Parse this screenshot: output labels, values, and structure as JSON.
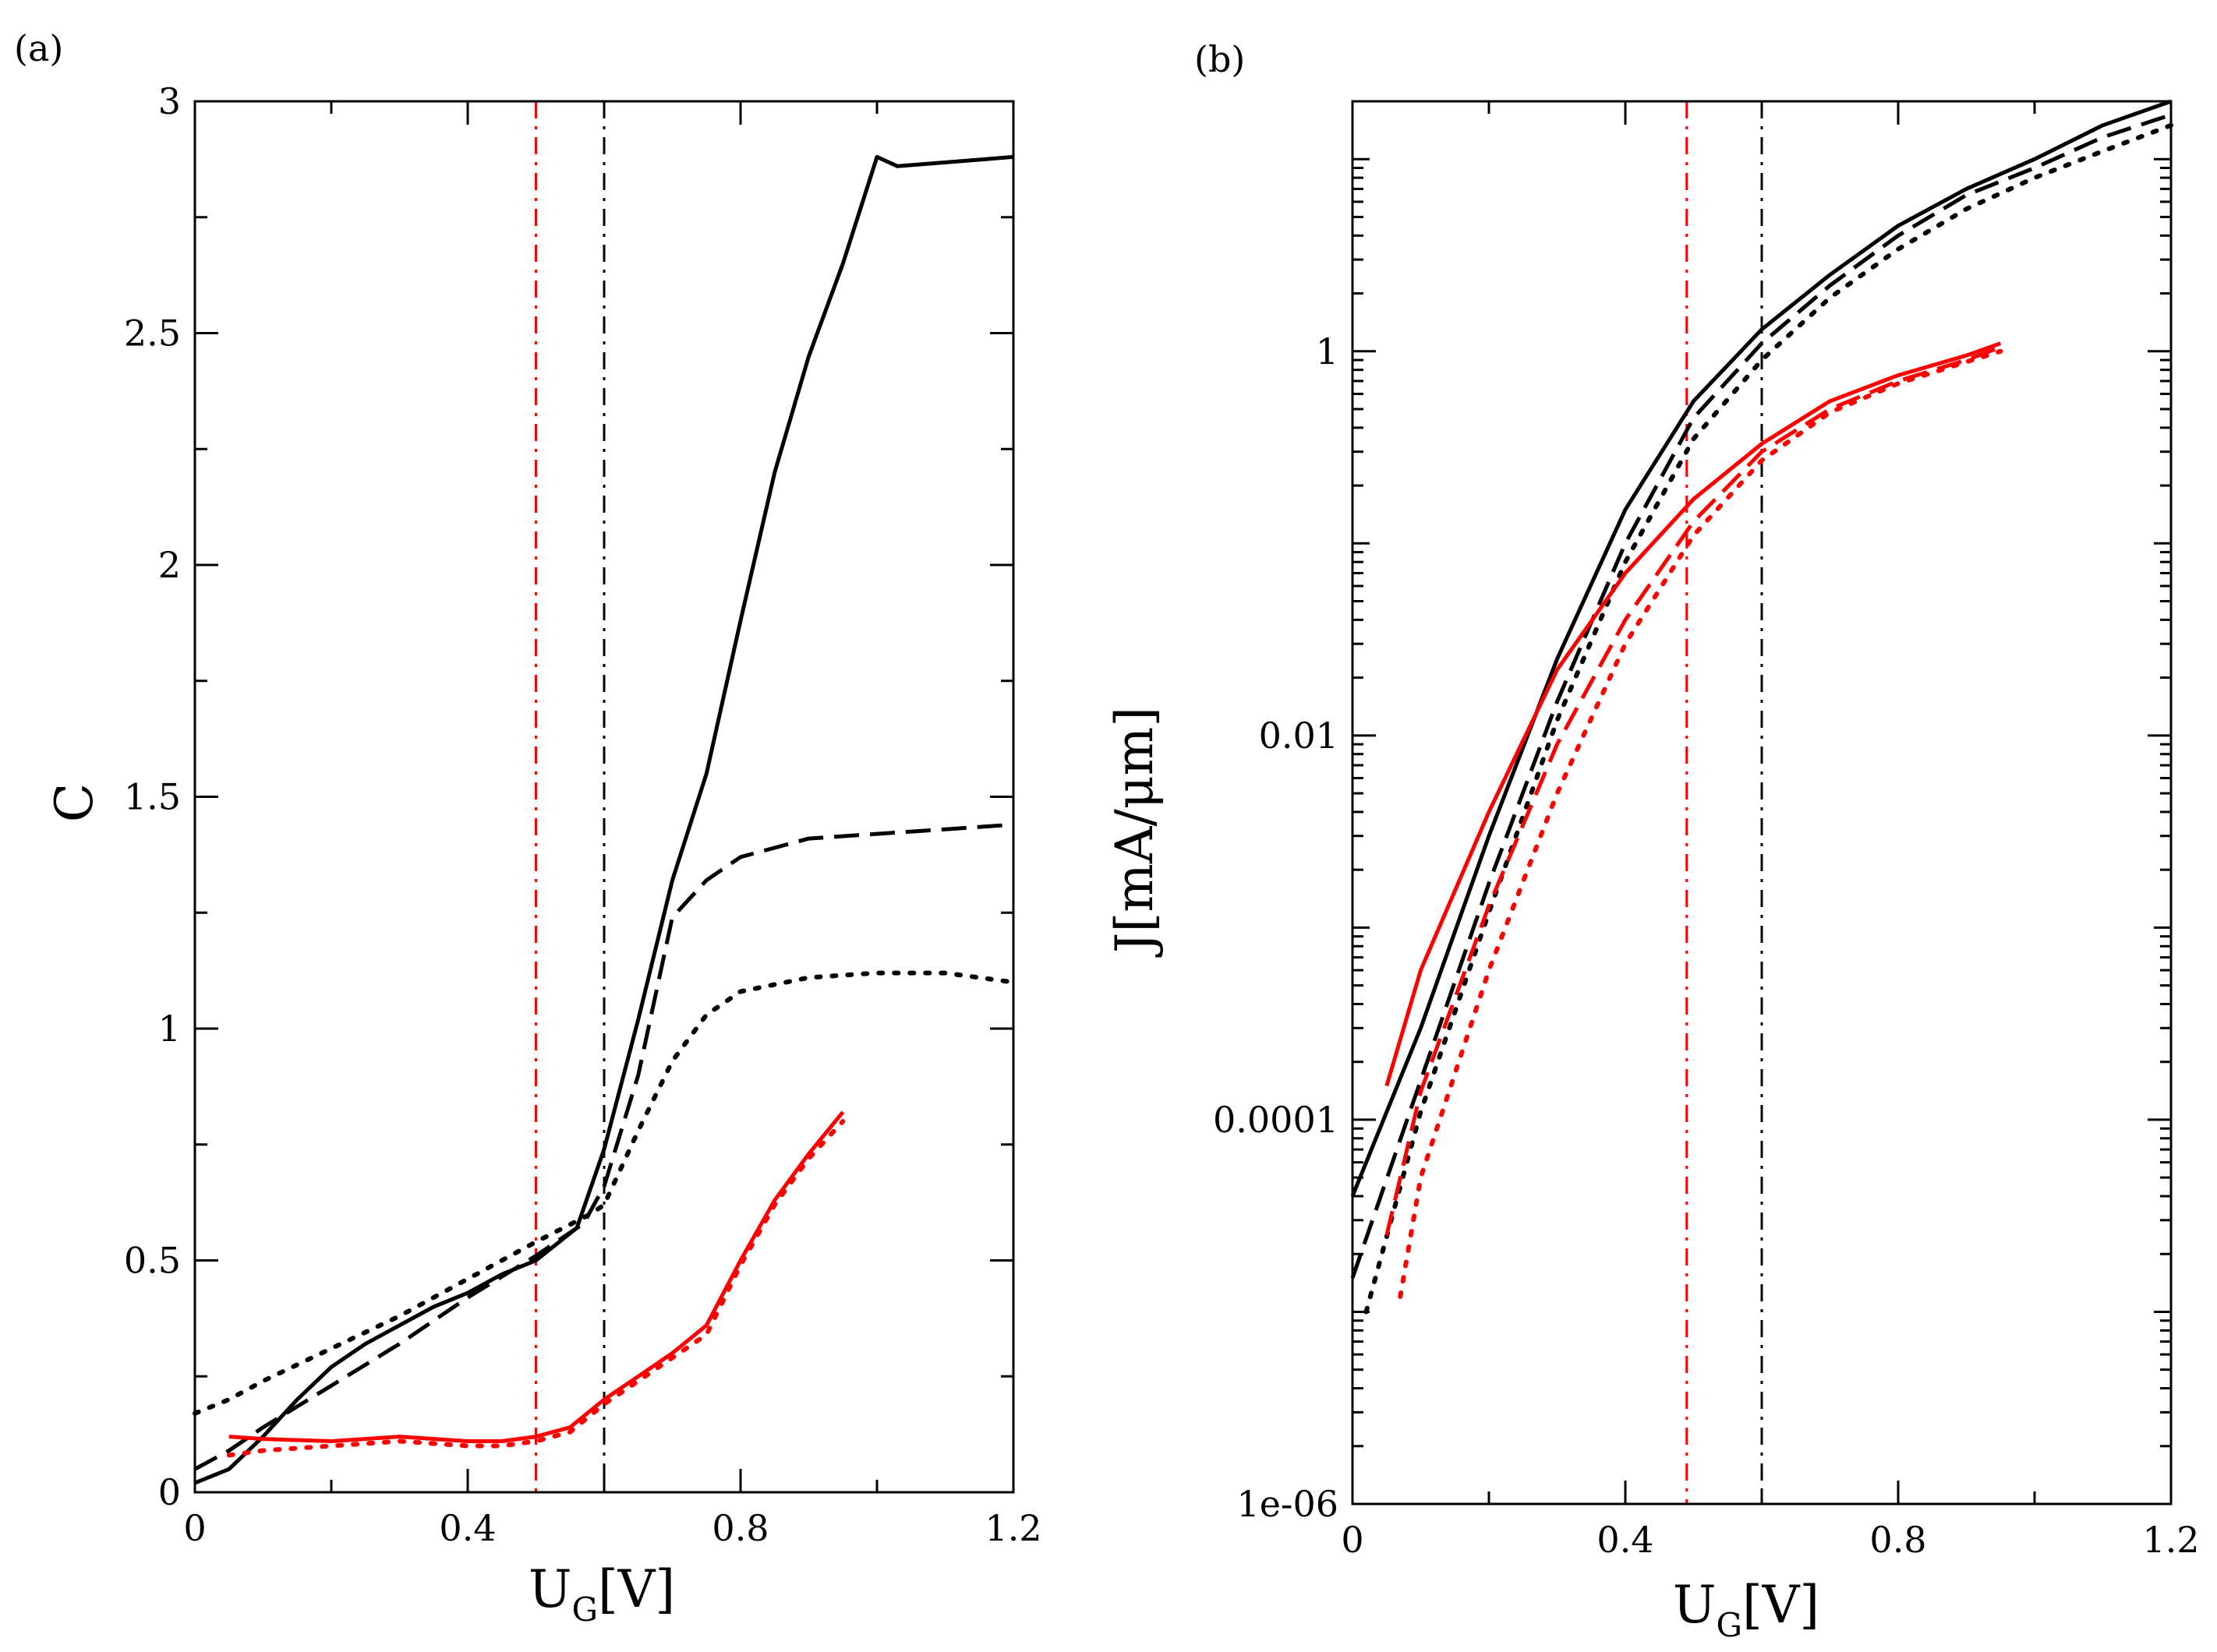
{
  "colors": {
    "black": "#000000",
    "red": "#ff0000"
  },
  "chart_data": [
    {
      "type": "line",
      "panel_label": "(a)",
      "xlabel": {
        "main": "U",
        "sub": "G",
        "rest": "[V]"
      },
      "ylabel": "C",
      "xlim": [
        0,
        1.2
      ],
      "ylim": [
        0,
        3
      ],
      "x_scale": "linear",
      "y_scale": "linear",
      "xticks": [
        0,
        0.4,
        0.8,
        1.2
      ],
      "xtick_labels": [
        "0",
        "0.4",
        "0.8",
        "1.2"
      ],
      "yticks": [
        0,
        0.5,
        1,
        1.5,
        2,
        2.5,
        3
      ],
      "ytick_labels": [
        "0",
        "0.5",
        "1",
        "1.5",
        "2",
        "2.5",
        "3"
      ],
      "vlines": [
        {
          "x": 0.5,
          "color": "#ff0000",
          "style": "dashdot"
        },
        {
          "x": 0.6,
          "color": "#000000",
          "style": "dashdot"
        }
      ],
      "series": [
        {
          "color": "#000000",
          "style": "solid",
          "x": [
            0,
            0.05,
            0.1,
            0.15,
            0.2,
            0.25,
            0.3,
            0.35,
            0.4,
            0.45,
            0.5,
            0.56,
            0.6,
            0.65,
            0.7,
            0.75,
            0.8,
            0.85,
            0.9,
            0.95,
            1.0,
            1.03,
            1.2
          ],
          "y": [
            0.02,
            0.05,
            0.12,
            0.2,
            0.27,
            0.32,
            0.36,
            0.4,
            0.43,
            0.47,
            0.5,
            0.57,
            0.74,
            1.02,
            1.32,
            1.55,
            1.88,
            2.2,
            2.45,
            2.65,
            2.88,
            2.86,
            2.88
          ]
        },
        {
          "color": "#000000",
          "style": "dashed",
          "x": [
            0,
            0.05,
            0.1,
            0.2,
            0.3,
            0.4,
            0.5,
            0.57,
            0.6,
            0.65,
            0.7,
            0.75,
            0.8,
            0.9,
            1.0,
            1.1,
            1.2
          ],
          "y": [
            0.05,
            0.09,
            0.14,
            0.23,
            0.32,
            0.42,
            0.51,
            0.58,
            0.66,
            0.9,
            1.24,
            1.32,
            1.37,
            1.41,
            1.42,
            1.43,
            1.44
          ]
        },
        {
          "color": "#000000",
          "style": "dotted",
          "x": [
            0,
            0.05,
            0.1,
            0.2,
            0.3,
            0.4,
            0.5,
            0.58,
            0.6,
            0.65,
            0.7,
            0.75,
            0.8,
            0.9,
            1.0,
            1.1,
            1.2
          ],
          "y": [
            0.17,
            0.2,
            0.24,
            0.31,
            0.38,
            0.46,
            0.54,
            0.6,
            0.62,
            0.78,
            0.93,
            1.03,
            1.08,
            1.11,
            1.12,
            1.12,
            1.1
          ]
        },
        {
          "color": "#ff0000",
          "style": "solid",
          "x": [
            0.05,
            0.1,
            0.2,
            0.3,
            0.4,
            0.45,
            0.5,
            0.55,
            0.6,
            0.65,
            0.7,
            0.75,
            0.8,
            0.85,
            0.9,
            0.95
          ],
          "y": [
            0.12,
            0.115,
            0.11,
            0.12,
            0.11,
            0.11,
            0.12,
            0.14,
            0.2,
            0.25,
            0.3,
            0.36,
            0.5,
            0.63,
            0.73,
            0.82
          ]
        },
        {
          "color": "#ff0000",
          "style": "dotted",
          "x": [
            0.05,
            0.1,
            0.2,
            0.3,
            0.4,
            0.45,
            0.5,
            0.55,
            0.6,
            0.65,
            0.7,
            0.75,
            0.8,
            0.85,
            0.9,
            0.95
          ],
          "y": [
            0.08,
            0.09,
            0.1,
            0.11,
            0.1,
            0.1,
            0.11,
            0.13,
            0.19,
            0.24,
            0.29,
            0.34,
            0.49,
            0.62,
            0.72,
            0.8
          ]
        }
      ]
    },
    {
      "type": "line",
      "panel_label": "(b)",
      "xlabel": {
        "main": "U",
        "sub": "G",
        "rest": "[V]"
      },
      "ylabel": "J[mA/μm]",
      "xlim": [
        0,
        1.2
      ],
      "ylim": [
        1e-06,
        20
      ],
      "x_scale": "linear",
      "y_scale": "log",
      "xticks": [
        0,
        0.4,
        0.8,
        1.2
      ],
      "xtick_labels": [
        "0",
        "0.4",
        "0.8",
        "1.2"
      ],
      "yticks": [
        1e-06,
        0.0001,
        0.01,
        1
      ],
      "ytick_labels": [
        "1e-06",
        "0.0001",
        "0.01",
        "1"
      ],
      "vlines": [
        {
          "x": 0.49,
          "color": "#ff0000",
          "style": "dashdot"
        },
        {
          "x": 0.6,
          "color": "#000000",
          "style": "dashdot"
        }
      ],
      "series": [
        {
          "color": "#000000",
          "style": "solid",
          "x": [
            0,
            0.1,
            0.2,
            0.3,
            0.4,
            0.5,
            0.6,
            0.7,
            0.8,
            0.9,
            1.0,
            1.1,
            1.2
          ],
          "y": [
            4e-05,
            0.0003,
            0.003,
            0.025,
            0.15,
            0.55,
            1.3,
            2.5,
            4.5,
            7,
            10,
            15,
            20
          ]
        },
        {
          "color": "#000000",
          "style": "dashed",
          "x": [
            0,
            0.1,
            0.2,
            0.3,
            0.4,
            0.5,
            0.6,
            0.7,
            0.8,
            0.9,
            1.0,
            1.1,
            1.2
          ],
          "y": [
            1.5e-05,
            0.00016,
            0.0017,
            0.015,
            0.1,
            0.45,
            1.1,
            2.2,
            4,
            6.5,
            9,
            13,
            17
          ]
        },
        {
          "color": "#000000",
          "style": "dotted",
          "x": [
            0.02,
            0.1,
            0.2,
            0.3,
            0.4,
            0.5,
            0.6,
            0.7,
            0.8,
            0.9,
            1.0,
            1.1,
            1.2
          ],
          "y": [
            1e-05,
            0.00011,
            0.0012,
            0.012,
            0.08,
            0.35,
            0.9,
            1.9,
            3.4,
            5.5,
            8,
            11,
            15
          ]
        },
        {
          "color": "#ff0000",
          "style": "solid",
          "x": [
            0.05,
            0.1,
            0.2,
            0.3,
            0.4,
            0.5,
            0.6,
            0.7,
            0.8,
            0.9,
            0.95
          ],
          "y": [
            0.00015,
            0.0006,
            0.004,
            0.022,
            0.07,
            0.17,
            0.33,
            0.55,
            0.75,
            0.95,
            1.1
          ]
        },
        {
          "color": "#ff0000",
          "style": "dashed",
          "x": [
            0.05,
            0.1,
            0.2,
            0.3,
            0.4,
            0.5,
            0.6,
            0.7,
            0.8,
            0.9,
            0.95
          ],
          "y": [
            2.5e-05,
            0.00014,
            0.0013,
            0.009,
            0.04,
            0.13,
            0.3,
            0.5,
            0.7,
            0.9,
            1.05
          ]
        },
        {
          "color": "#ff0000",
          "style": "dotted",
          "x": [
            0.07,
            0.1,
            0.2,
            0.3,
            0.4,
            0.5,
            0.6,
            0.7,
            0.8,
            0.9,
            0.95
          ],
          "y": [
            1.2e-05,
            5e-05,
            0.0006,
            0.005,
            0.03,
            0.11,
            0.27,
            0.48,
            0.68,
            0.88,
            1.0
          ]
        }
      ]
    }
  ]
}
